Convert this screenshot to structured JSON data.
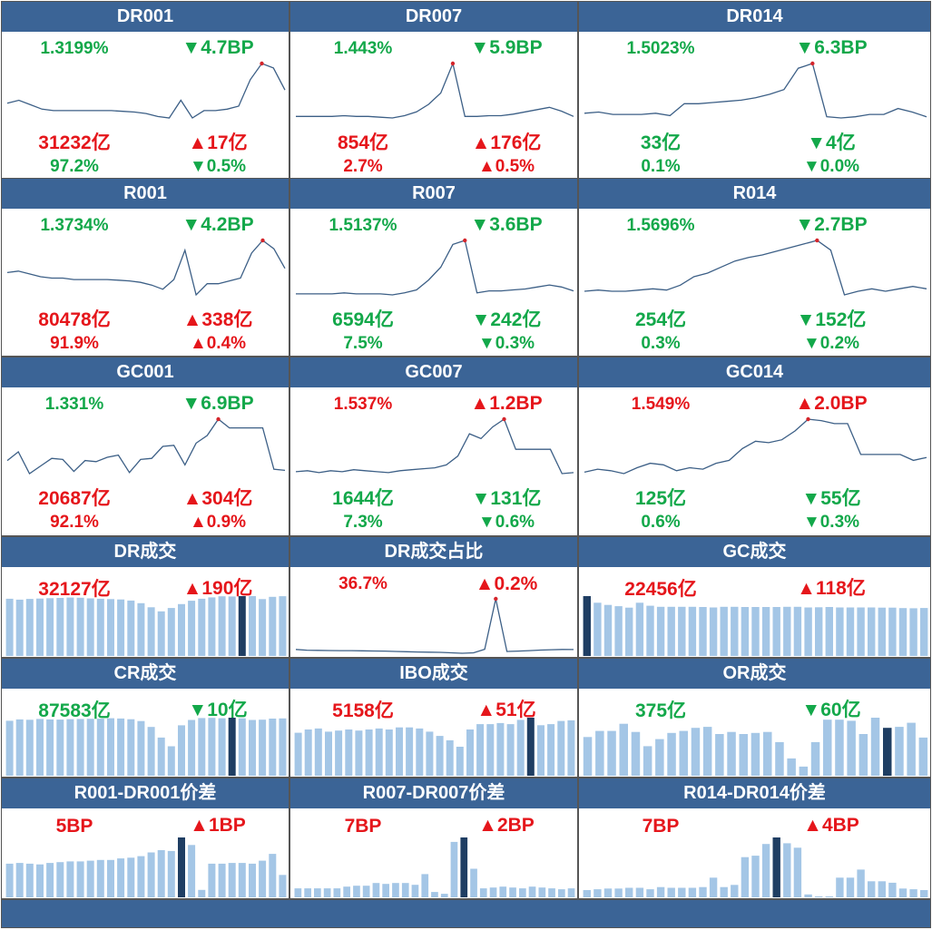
{
  "colors": {
    "up": "#e5161b",
    "down": "#13a84a",
    "header": "#3b6496",
    "line": "#3c5f86",
    "bar": "#a4c6e6",
    "bar_hi": "#1f3e63",
    "marker": "#d4242a"
  },
  "chart_data": [
    {
      "type": "line",
      "title": "DR001",
      "rate": "1.3199%",
      "rate_dir": "down",
      "rate_chg": "▼4.7BP",
      "chg_dir": "down",
      "vol": "31232亿",
      "vol_dir": "up",
      "vol_chg": "▲17亿",
      "vol_chg_dir": "up",
      "share": "97.2%",
      "share_dir": "down",
      "share_chg": "▼0.5%",
      "share_chg_dir": "down",
      "values": [
        1.34,
        1.36,
        1.33,
        1.3,
        1.29,
        1.29,
        1.29,
        1.29,
        1.29,
        1.29,
        1.285,
        1.28,
        1.27,
        1.25,
        1.24,
        1.36,
        1.24,
        1.29,
        1.29,
        1.3,
        1.32,
        1.5,
        1.61,
        1.58,
        1.43
      ],
      "marker_index": 22
    },
    {
      "type": "line",
      "title": "DR007",
      "rate": "1.443%",
      "rate_dir": "down",
      "rate_chg": "▼5.9BP",
      "chg_dir": "down",
      "vol": "854亿",
      "vol_dir": "up",
      "vol_chg": "▲176亿",
      "vol_chg_dir": "up",
      "share": "2.7%",
      "share_dir": "up",
      "share_chg": "▲0.5%",
      "share_chg_dir": "up",
      "values": [
        1.4,
        1.4,
        1.4,
        1.4,
        1.41,
        1.4,
        1.4,
        1.39,
        1.38,
        1.41,
        1.46,
        1.56,
        1.71,
        2.1,
        1.4,
        1.4,
        1.41,
        1.41,
        1.43,
        1.46,
        1.49,
        1.52,
        1.47,
        1.4
      ],
      "marker_index": 13
    },
    {
      "type": "line",
      "title": "DR014",
      "rate": "1.5023%",
      "rate_dir": "down",
      "rate_chg": "▼6.3BP",
      "chg_dir": "down",
      "vol": "33亿",
      "vol_dir": "down",
      "vol_chg": "▼4亿",
      "vol_chg_dir": "down",
      "share": "0.1%",
      "share_dir": "down",
      "share_chg": "▼0.0%",
      "share_chg_dir": "down",
      "values": [
        1.52,
        1.53,
        1.51,
        1.51,
        1.51,
        1.52,
        1.5,
        1.6,
        1.6,
        1.61,
        1.62,
        1.63,
        1.65,
        1.68,
        1.72,
        1.9,
        1.94,
        1.49,
        1.48,
        1.49,
        1.51,
        1.51,
        1.56,
        1.53,
        1.49
      ],
      "marker_index": 16
    },
    {
      "type": "line",
      "title": "R001",
      "rate": "1.3734%",
      "rate_dir": "down",
      "rate_chg": "▼4.2BP",
      "chg_dir": "down",
      "vol": "80478亿",
      "vol_dir": "up",
      "vol_chg": "▲338亿",
      "vol_chg_dir": "up",
      "share": "91.9%",
      "share_dir": "up",
      "share_chg": "▲0.4%",
      "share_chg_dir": "up",
      "values": [
        1.38,
        1.39,
        1.37,
        1.35,
        1.34,
        1.34,
        1.33,
        1.33,
        1.33,
        1.33,
        1.325,
        1.32,
        1.31,
        1.29,
        1.26,
        1.33,
        1.54,
        1.22,
        1.3,
        1.3,
        1.32,
        1.34,
        1.52,
        1.61,
        1.55,
        1.41
      ],
      "marker_index": 23
    },
    {
      "type": "line",
      "title": "R007",
      "rate": "1.5137%",
      "rate_dir": "down",
      "rate_chg": "▼3.6BP",
      "chg_dir": "down",
      "vol": "6594亿",
      "vol_dir": "down",
      "vol_chg": "▼242亿",
      "vol_chg_dir": "down",
      "share": "7.5%",
      "share_dir": "down",
      "share_chg": "▼0.3%",
      "share_chg_dir": "down",
      "values": [
        1.48,
        1.48,
        1.48,
        1.48,
        1.49,
        1.48,
        1.48,
        1.48,
        1.47,
        1.49,
        1.52,
        1.62,
        1.75,
        1.98,
        2.02,
        1.49,
        1.51,
        1.51,
        1.52,
        1.53,
        1.55,
        1.57,
        1.55,
        1.51
      ],
      "marker_index": 14
    },
    {
      "type": "line",
      "title": "R014",
      "rate": "1.5696%",
      "rate_dir": "down",
      "rate_chg": "▼2.7BP",
      "chg_dir": "down",
      "vol": "254亿",
      "vol_dir": "down",
      "vol_chg": "▼152亿",
      "vol_chg_dir": "down",
      "share": "0.3%",
      "share_dir": "down",
      "share_chg": "▼0.2%",
      "share_chg_dir": "down",
      "values": [
        1.6,
        1.61,
        1.6,
        1.6,
        1.61,
        1.62,
        1.61,
        1.65,
        1.72,
        1.75,
        1.8,
        1.85,
        1.88,
        1.9,
        1.93,
        1.96,
        1.99,
        2.02,
        1.94,
        1.57,
        1.6,
        1.62,
        1.6,
        1.62,
        1.64,
        1.62
      ],
      "marker_index": 17
    },
    {
      "type": "line",
      "title": "GC001",
      "rate": "1.331%",
      "rate_dir": "down",
      "rate_chg": "▼6.9BP",
      "chg_dir": "down",
      "vol": "20687亿",
      "vol_dir": "up",
      "vol_chg": "▲304亿",
      "vol_chg_dir": "up",
      "share": "92.1%",
      "share_dir": "up",
      "share_chg": "▲0.9%",
      "share_chg_dir": "up",
      "values": [
        1.33,
        1.41,
        1.21,
        1.28,
        1.35,
        1.34,
        1.23,
        1.33,
        1.32,
        1.36,
        1.38,
        1.22,
        1.34,
        1.35,
        1.46,
        1.47,
        1.29,
        1.49,
        1.56,
        1.71,
        1.63,
        1.63,
        1.63,
        1.63,
        1.25,
        1.24
      ],
      "marker_index": 19
    },
    {
      "type": "line",
      "title": "GC007",
      "rate": "1.537%",
      "rate_dir": "up",
      "rate_chg": "▲1.2BP",
      "chg_dir": "up",
      "vol": "1644亿",
      "vol_dir": "down",
      "vol_chg": "▼131亿",
      "vol_chg_dir": "down",
      "share": "7.3%",
      "share_dir": "down",
      "share_chg": "▼0.6%",
      "share_chg_dir": "down",
      "values": [
        1.43,
        1.44,
        1.42,
        1.44,
        1.43,
        1.45,
        1.44,
        1.43,
        1.42,
        1.44,
        1.45,
        1.46,
        1.47,
        1.5,
        1.59,
        1.82,
        1.77,
        1.89,
        1.97,
        1.66,
        1.66,
        1.66,
        1.66,
        1.41,
        1.42
      ],
      "marker_index": 18
    },
    {
      "type": "line",
      "title": "GC014",
      "rate": "1.549%",
      "rate_dir": "up",
      "rate_chg": "▲2.0BP",
      "chg_dir": "up",
      "vol": "125亿",
      "vol_dir": "down",
      "vol_chg": "▼55亿",
      "vol_chg_dir": "down",
      "share": "0.6%",
      "share_dir": "down",
      "share_chg": "▼0.3%",
      "share_chg_dir": "down",
      "values": [
        1.5,
        1.52,
        1.51,
        1.49,
        1.53,
        1.56,
        1.55,
        1.51,
        1.53,
        1.52,
        1.56,
        1.58,
        1.66,
        1.71,
        1.7,
        1.72,
        1.78,
        1.86,
        1.85,
        1.83,
        1.83,
        1.62,
        1.62,
        1.62,
        1.62,
        1.58,
        1.6
      ],
      "marker_index": 17
    },
    {
      "type": "bar",
      "title": "DR成交",
      "value": "32127亿",
      "value_dir": "up",
      "chg": "▲190亿",
      "chg_dir": "up",
      "values": [
        30800,
        30300,
        30700,
        30900,
        31100,
        31200,
        31400,
        31300,
        31000,
        30800,
        30600,
        30400,
        29800,
        28400,
        26200,
        24000,
        25800,
        27900,
        29700,
        30800,
        31500,
        32100,
        32000,
        32200,
        32200,
        30600,
        31800,
        32127
      ],
      "highlight_index": 23
    },
    {
      "type": "line",
      "title": "DR成交占比",
      "value": "36.7%",
      "value_dir": "up",
      "chg": "▲0.2%",
      "chg_dir": "up",
      "values": [
        36.8,
        36.3,
        36.2,
        36.1,
        36.0,
        36.0,
        35.9,
        35.8,
        35.7,
        35.5,
        35.3,
        35.1,
        35.0,
        34.9,
        34.6,
        34.3,
        34.6,
        36.9,
        69.8,
        35.5,
        35.7,
        36.0,
        36.4,
        36.6,
        36.8,
        36.7
      ],
      "marker_index": 18
    },
    {
      "type": "bar",
      "title": "GC成交",
      "value": "22456亿",
      "value_dir": "up",
      "chg": "▲118亿",
      "chg_dir": "up",
      "values": [
        28000,
        24900,
        23900,
        23300,
        22600,
        24900,
        23500,
        23000,
        23000,
        23000,
        23000,
        22900,
        22700,
        23000,
        23000,
        22900,
        22900,
        22900,
        22900,
        23000,
        23000,
        22700,
        22800,
        22900,
        22700,
        22700,
        22700,
        22700,
        22600,
        22600,
        22400,
        22300,
        22456
      ],
      "highlight_index": 0
    },
    {
      "type": "bar",
      "title": "CR成交",
      "value": "87583亿",
      "value_dir": "down",
      "chg": "▼10亿",
      "chg_dir": "down",
      "values": [
        84000,
        86000,
        85500,
        86700,
        86000,
        85800,
        86500,
        86700,
        87000,
        87200,
        87800,
        87500,
        86400,
        83600,
        74500,
        58300,
        45000,
        77000,
        85300,
        88200,
        88400,
        87900,
        88700,
        87700,
        85200,
        85600,
        87300,
        87583
      ],
      "highlight_index": 22
    },
    {
      "type": "bar",
      "title": "IBO成交",
      "value": "5158亿",
      "value_dir": "up",
      "chg": "▲51亿",
      "chg_dir": "up",
      "values": [
        4000,
        4300,
        4400,
        4100,
        4200,
        4300,
        4200,
        4300,
        4400,
        4300,
        4500,
        4500,
        4400,
        4100,
        3700,
        3300,
        2700,
        4300,
        4800,
        4800,
        4900,
        4800,
        5200,
        5400,
        4700,
        4800,
        5100,
        5158
      ],
      "highlight_index": 23
    },
    {
      "type": "bar",
      "title": "OR成交",
      "value": "375亿",
      "value_dir": "down",
      "chg": "▼60亿",
      "chg_dir": "down",
      "values": [
        380,
        440,
        440,
        510,
        430,
        290,
        360,
        420,
        440,
        470,
        480,
        410,
        430,
        410,
        420,
        430,
        330,
        170,
        90,
        330,
        550,
        550,
        540,
        410,
        570,
        470,
        480,
        520,
        375
      ],
      "highlight_index": 25
    },
    {
      "type": "bar",
      "title": "R001-DR001价差",
      "value": "5BP",
      "value_dir": "up",
      "chg": "▲1BP",
      "chg_dir": "up",
      "values": [
        4.5,
        4.6,
        4.5,
        4.4,
        4.6,
        4.7,
        4.8,
        4.8,
        4.9,
        5.0,
        5.0,
        5.2,
        5.3,
        5.5,
        6.0,
        6.3,
        6.2,
        8.0,
        7.0,
        1.0,
        4.5,
        4.5,
        4.6,
        4.6,
        4.5,
        4.9,
        5.8,
        3.0
      ],
      "highlight_index": 17
    },
    {
      "type": "bar",
      "title": "R007-DR007价差",
      "value": "7BP",
      "value_dir": "up",
      "chg": "▲2BP",
      "chg_dir": "up",
      "values": [
        1.0,
        1.0,
        1.0,
        1.0,
        1.0,
        1.2,
        1.3,
        1.3,
        1.6,
        1.5,
        1.6,
        1.6,
        1.4,
        2.6,
        0.6,
        0.4,
        6.2,
        6.7,
        3.2,
        1.0,
        1.1,
        1.2,
        1.1,
        1.0,
        1.2,
        1.1,
        1.0,
        0.9,
        1.0
      ],
      "highlight_index": 17
    },
    {
      "type": "bar",
      "title": "R014-DR014价差",
      "value": "7BP",
      "value_dir": "up",
      "chg": "▲4BP",
      "chg_dir": "up",
      "values": [
        1.0,
        1.1,
        1.2,
        1.2,
        1.3,
        1.3,
        1.1,
        1.4,
        1.3,
        1.3,
        1.3,
        1.4,
        2.7,
        1.4,
        1.7,
        5.5,
        5.7,
        7.3,
        8.2,
        7.4,
        6.8,
        0.4,
        0.1,
        0.1,
        2.7,
        2.7,
        3.8,
        2.2,
        2.2,
        2.0,
        1.2,
        1.1,
        1.0
      ],
      "highlight_index": 18
    }
  ]
}
